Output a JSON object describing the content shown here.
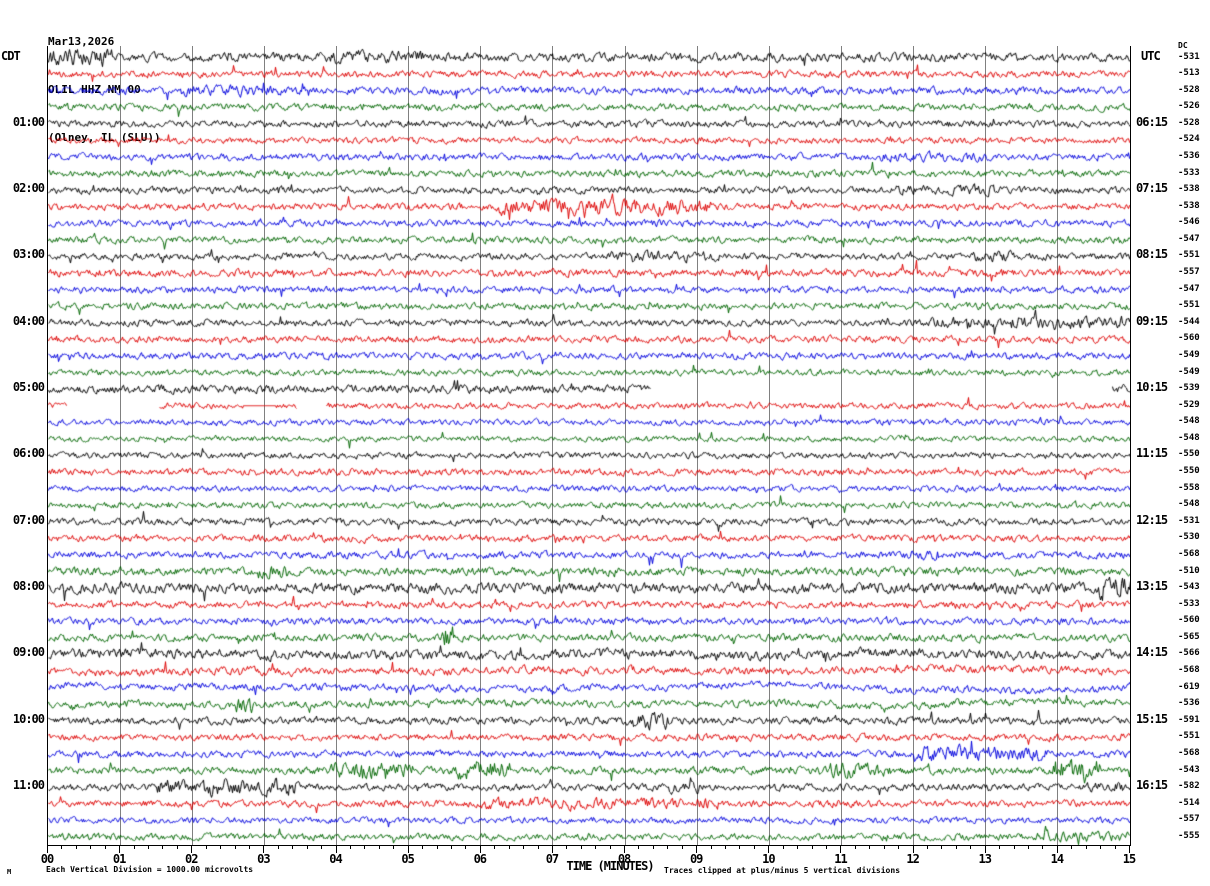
{
  "header": {
    "date": "Mar13,2026",
    "station": "OLIL HHZ NM 00",
    "location": "(Olney, IL (SLU))"
  },
  "axes": {
    "left_timezone": "CDT",
    "right_timezone": "UTC",
    "dc_header": "DC",
    "x_title": "TIME (MINUTES)"
  },
  "footer": {
    "mark": "M",
    "scale_note": "Each Vertical Division = 1000.00 microvolts",
    "clip_note": "Traces clipped at plus/minus 5 vertical divisions"
  },
  "colors": {
    "grid": "#808080",
    "axis": "#000000",
    "trace_cycle": [
      "#000000",
      "#dd0000",
      "#0000dd",
      "#006600"
    ]
  },
  "chart_data": {
    "type": "line",
    "title": "OLIL HHZ NM 00 (Olney, IL (SLU)) Mar13,2026 heliplot",
    "xlabel": "TIME (MINUTES)",
    "x_minutes_per_line": 15,
    "x_tick_labels": [
      "00",
      "01",
      "02",
      "03",
      "04",
      "05",
      "06",
      "07",
      "08",
      "09",
      "10",
      "11",
      "12",
      "13",
      "14",
      "15"
    ],
    "minor_ticks_per_minute": 5,
    "hour_labels": [
      {
        "row": 4,
        "cdt": "01:00",
        "utc": "06:15"
      },
      {
        "row": 8,
        "cdt": "02:00",
        "utc": "07:15"
      },
      {
        "row": 12,
        "cdt": "03:00",
        "utc": "08:15"
      },
      {
        "row": 16,
        "cdt": "04:00",
        "utc": "09:15"
      },
      {
        "row": 20,
        "cdt": "05:00",
        "utc": "10:15"
      },
      {
        "row": 24,
        "cdt": "06:00",
        "utc": "11:15"
      },
      {
        "row": 28,
        "cdt": "07:00",
        "utc": "12:15"
      },
      {
        "row": 32,
        "cdt": "08:00",
        "utc": "13:15"
      },
      {
        "row": 36,
        "cdt": "09:00",
        "utc": "14:15"
      },
      {
        "row": 40,
        "cdt": "10:00",
        "utc": "15:15"
      },
      {
        "row": 44,
        "cdt": "11:00",
        "utc": "16:15"
      }
    ],
    "dc_values": [
      -531,
      -513,
      -528,
      -526,
      -528,
      -524,
      -536,
      -533,
      -538,
      -538,
      -546,
      -547,
      -551,
      -557,
      -547,
      -551,
      -544,
      -560,
      -549,
      -549,
      -539,
      -529,
      -548,
      -548,
      -550,
      -550,
      -558,
      -548,
      -531,
      -530,
      -568,
      -510,
      -543,
      -533,
      -560,
      -565,
      -566,
      -568,
      -619,
      -536,
      -591,
      -551,
      -568,
      -543,
      -582,
      -514,
      -557,
      -555
    ],
    "rows": [
      {
        "amp": 1.3,
        "events": [
          {
            "s": 0,
            "e": 0.9,
            "a": 2.0
          },
          {
            "s": 3.9,
            "e": 5.2,
            "a": 1.5
          }
        ]
      },
      {
        "amp": 1.0
      },
      {
        "amp": 1.1,
        "events": [
          {
            "s": 1.8,
            "e": 3.2,
            "a": 1.5
          }
        ]
      },
      {
        "amp": 1.0
      },
      {
        "amp": 1.0
      },
      {
        "amp": 0.9
      },
      {
        "amp": 1.0,
        "events": [
          {
            "s": 11.5,
            "e": 13.0,
            "a": 1.4
          }
        ]
      },
      {
        "amp": 1.0
      },
      {
        "amp": 1.0,
        "events": [
          {
            "s": 11.8,
            "e": 13.2,
            "a": 1.5
          }
        ]
      },
      {
        "amp": 1.0,
        "events": [
          {
            "s": 6.2,
            "e": 9.2,
            "a": 2.4
          }
        ]
      },
      {
        "amp": 1.0
      },
      {
        "amp": 1.0
      },
      {
        "amp": 1.0,
        "events": [
          {
            "s": 7.8,
            "e": 9.3,
            "a": 1.5
          },
          {
            "s": 12.8,
            "e": 13.4,
            "a": 1.6
          }
        ]
      },
      {
        "amp": 1.1
      },
      {
        "amp": 1.0
      },
      {
        "amp": 1.0
      },
      {
        "amp": 1.0,
        "events": [
          {
            "s": 12.2,
            "e": 13.2,
            "a": 1.6
          },
          {
            "s": 13.3,
            "e": 15,
            "a": 2.0
          }
        ]
      },
      {
        "amp": 1.0
      },
      {
        "amp": 1.0
      },
      {
        "amp": 0.9
      },
      {
        "amp": 1.2,
        "gaps": [
          {
            "s": 8.35,
            "e": 14.75
          }
        ]
      },
      {
        "amp": 0.9,
        "gaps": [
          {
            "s": 0.26,
            "e": 1.53
          },
          {
            "s": 3.45,
            "e": 3.85
          }
        ],
        "flats": [
          {
            "s": 2.7,
            "e": 3.15
          }
        ]
      },
      {
        "amp": 0.9
      },
      {
        "amp": 0.8
      },
      {
        "amp": 0.9
      },
      {
        "amp": 1.0
      },
      {
        "amp": 0.9
      },
      {
        "amp": 0.9
      },
      {
        "amp": 1.0
      },
      {
        "amp": 1.0
      },
      {
        "amp": 1.0,
        "events": [
          {
            "s": 11.6,
            "e": 12.4,
            "a": 1.6
          }
        ]
      },
      {
        "amp": 1.2,
        "events": [
          {
            "s": 2.9,
            "e": 3.3,
            "a": 1.8
          }
        ]
      },
      {
        "amp": 1.5,
        "events": [
          {
            "s": 14.55,
            "e": 15,
            "a": 2.2
          }
        ]
      },
      {
        "amp": 1.0
      },
      {
        "amp": 1.0
      },
      {
        "amp": 1.1,
        "events": [
          {
            "s": 5.45,
            "e": 5.62,
            "a": 4.0
          }
        ]
      },
      {
        "amp": 1.4,
        "wander": 2.0
      },
      {
        "amp": 1.1,
        "wander": 3.0
      },
      {
        "amp": 1.0,
        "wander": 3.0
      },
      {
        "amp": 1.0,
        "wander": 2.5,
        "events": [
          {
            "s": 2.6,
            "e": 2.85,
            "a": 2.5
          }
        ]
      },
      {
        "amp": 1.1,
        "events": [
          {
            "s": 8.0,
            "e": 8.6,
            "a": 2.2
          }
        ]
      },
      {
        "amp": 1.0
      },
      {
        "amp": 1.0,
        "events": [
          {
            "s": 12.0,
            "e": 13.85,
            "a": 2.3
          }
        ]
      },
      {
        "amp": 1.1,
        "events": [
          {
            "s": 3.9,
            "e": 5.05,
            "a": 2.2
          },
          {
            "s": 5.6,
            "e": 6.4,
            "a": 2.6
          },
          {
            "s": 10.8,
            "e": 11.7,
            "a": 2.2
          },
          {
            "s": 13.9,
            "e": 14.6,
            "a": 3.2
          }
        ]
      },
      {
        "amp": 1.0,
        "events": [
          {
            "s": 1.5,
            "e": 3.5,
            "a": 2.6
          },
          {
            "s": 8.6,
            "e": 9.1,
            "a": 1.8
          },
          {
            "s": 14.4,
            "e": 14.9,
            "a": 1.7
          }
        ]
      },
      {
        "amp": 1.0,
        "events": [
          {
            "s": 6.0,
            "e": 9.3,
            "a": 1.7
          }
        ]
      },
      {
        "amp": 0.9
      },
      {
        "amp": 1.0,
        "events": [
          {
            "s": 13.7,
            "e": 15,
            "a": 1.5
          }
        ]
      }
    ]
  }
}
